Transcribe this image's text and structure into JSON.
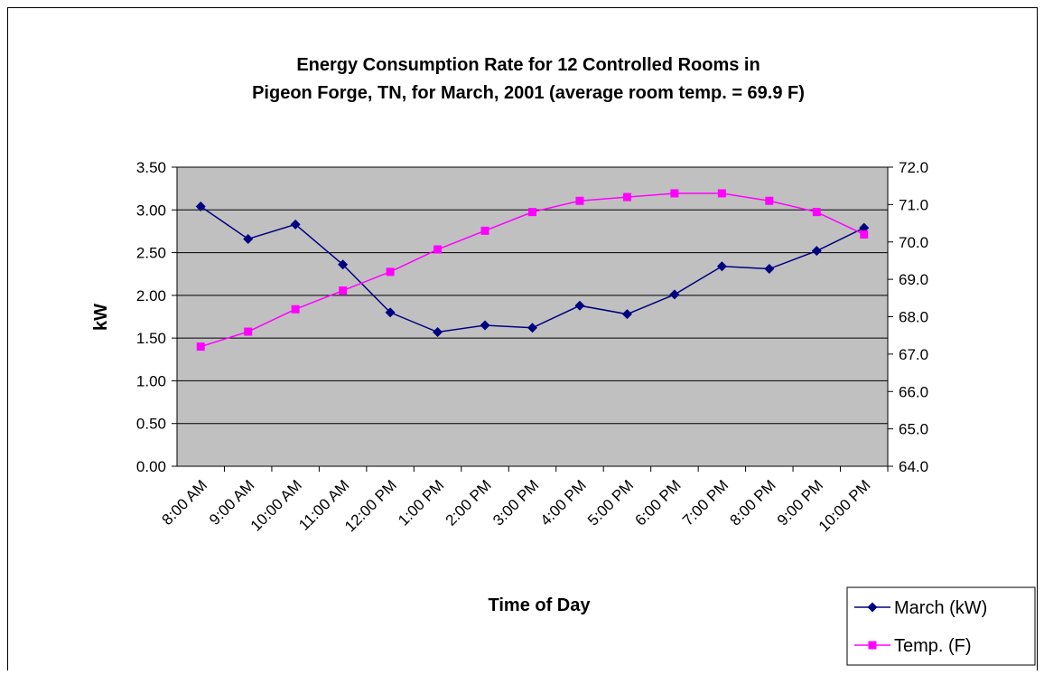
{
  "chart_data": {
    "type": "line",
    "title": [
      "Energy Consumption Rate for 12 Controlled Rooms in",
      "Pigeon Forge, TN, for March, 2001 (average room temp. = 69.9 F)"
    ],
    "x_label": "Time of Day",
    "y_label": "kW",
    "categories": [
      "8:00 AM",
      "9:00 AM",
      "10:00 AM",
      "11:00 AM",
      "12:00 PM",
      "1:00 PM",
      "2:00 PM",
      "3:00 PM",
      "4:00 PM",
      "5:00 PM",
      "6:00 PM",
      "7:00 PM",
      "8:00 PM",
      "9:00 PM",
      "10:00 PM"
    ],
    "series": [
      {
        "name": "March (kW)",
        "color": "#000080",
        "marker": "diamond",
        "values": [
          3.04,
          2.66,
          2.83,
          2.36,
          1.8,
          1.57,
          1.65,
          1.62,
          1.88,
          1.78,
          2.01,
          2.34,
          2.31,
          2.52,
          2.79
        ]
      },
      {
        "name": "Temp. (F)",
        "color": "#ff00ff",
        "marker": "square",
        "axis": "y2",
        "values": [
          67.2,
          67.6,
          68.2,
          68.7,
          69.2,
          69.8,
          70.3,
          70.8,
          71.1,
          71.2,
          71.3,
          71.3,
          71.1,
          70.8,
          70.2
        ]
      }
    ],
    "ylim": [
      0,
      3.5
    ],
    "yticks": [
      {
        "value": 0,
        "label": "0.00"
      },
      {
        "value": 0.5,
        "label": "0.50"
      },
      {
        "value": 1,
        "label": "1.00"
      },
      {
        "value": 1.5,
        "label": "1.50"
      },
      {
        "value": 2,
        "label": "2.00"
      },
      {
        "value": 2.5,
        "label": "2.50"
      },
      {
        "value": 3,
        "label": "3.00"
      },
      {
        "value": 3.5,
        "label": "3.50"
      }
    ],
    "y2lim": [
      64,
      72
    ],
    "y2ticks": [
      {
        "value": 64,
        "label": "64.0"
      },
      {
        "value": 65,
        "label": "65.0"
      },
      {
        "value": 66,
        "label": "66.0"
      },
      {
        "value": 67,
        "label": "67.0"
      },
      {
        "value": 68,
        "label": "68.0"
      },
      {
        "value": 69,
        "label": "69.0"
      },
      {
        "value": 70,
        "label": "70.0"
      },
      {
        "value": 71,
        "label": "71.0"
      },
      {
        "value": 72,
        "label": "72.0"
      }
    ],
    "grid": true,
    "plot_background": "#c0c0c0",
    "legend": "bottom-right"
  }
}
